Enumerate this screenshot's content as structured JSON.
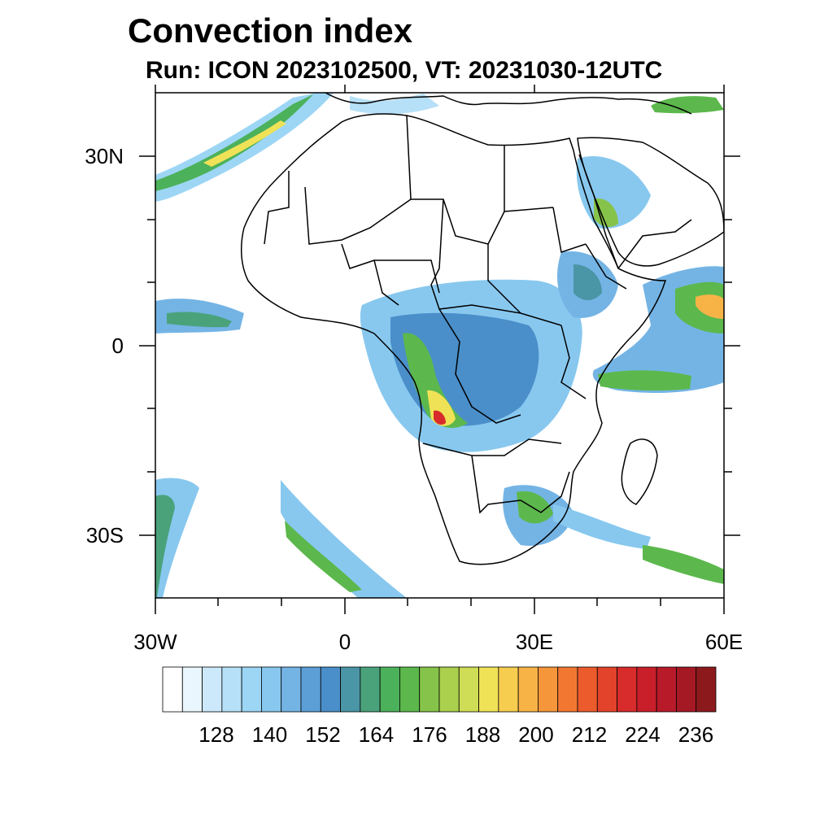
{
  "title": "Convection index",
  "subtitle": "Run: ICON 2023102500,  VT: 20231030-12UTC",
  "map": {
    "region": "Africa",
    "lon_range": [
      -30,
      60
    ],
    "lat_range": [
      -40,
      40
    ],
    "x_ticks": [
      {
        "lon": -30,
        "label": "30W"
      },
      {
        "lon": 0,
        "label": "0"
      },
      {
        "lon": 30,
        "label": "30E"
      },
      {
        "lon": 60,
        "label": "60E"
      }
    ],
    "y_ticks": [
      {
        "lat": 30,
        "label": "30N"
      },
      {
        "lat": 0,
        "label": "0"
      },
      {
        "lat": -30,
        "label": "30S"
      }
    ]
  },
  "colorbar": {
    "colors": [
      "#ffffff",
      "#e9f6fd",
      "#cbe9fa",
      "#b6e0f7",
      "#9dd6f5",
      "#88c8ef",
      "#74b4e5",
      "#5c9fd7",
      "#4a8fc9",
      "#4a95a6",
      "#4aa27b",
      "#4cb15b",
      "#5cb84c",
      "#86c34a",
      "#aad04d",
      "#cfdc55",
      "#f0e257",
      "#f7cd4f",
      "#f8b347",
      "#f6963b",
      "#f27832",
      "#ec5b2c",
      "#e3432a",
      "#d72c2b",
      "#c81f2b",
      "#b81a29",
      "#a41923",
      "#8c1a1d"
    ],
    "labels": [
      "128",
      "140",
      "152",
      "164",
      "176",
      "188",
      "200",
      "212",
      "224",
      "236"
    ]
  }
}
